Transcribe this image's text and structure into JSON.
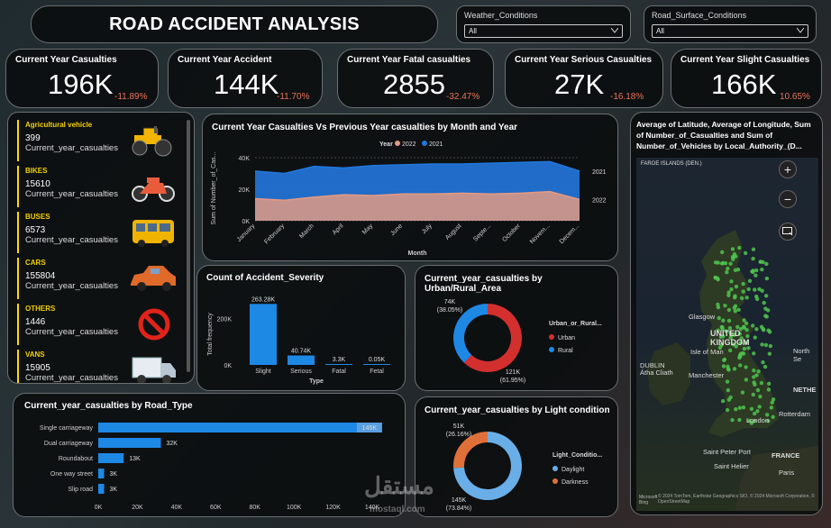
{
  "title": "ROAD ACCIDENT ANALYSIS",
  "slicers": [
    {
      "label": "Weather_Conditions",
      "value": "All"
    },
    {
      "label": "Road_Surface_Conditions",
      "value": "All"
    }
  ],
  "kpis": [
    {
      "title": "Current Year Casualties",
      "value": "196K",
      "pct": "-11.89%"
    },
    {
      "title": "Current Year Accident",
      "value": "144K",
      "pct": "-11.70%"
    },
    {
      "title": "Current Year Fatal casualties",
      "value": "2855",
      "pct": "-32.47%"
    },
    {
      "title": "Current Year Serious Casualties",
      "value": "27K",
      "pct": "-16.18%"
    },
    {
      "title": "Current Year Slight Casualties",
      "value": "166K",
      "pct": "10.65%"
    }
  ],
  "vehicles": [
    {
      "name": "Agricultural vehicle",
      "value": "399",
      "label": "Current_year_casualties",
      "icon": "tractor-icon"
    },
    {
      "name": "BIKES",
      "value": "15610",
      "label": "Current_year_casualties",
      "icon": "motorbike-icon"
    },
    {
      "name": "BUSES",
      "value": "6573",
      "label": "Current_year_casualties",
      "icon": "bus-icon"
    },
    {
      "name": "CARS",
      "value": "155804",
      "label": "Current_year_casualties",
      "icon": "car-icon"
    },
    {
      "name": "OTHERS",
      "value": "1446",
      "label": "Current_year_casualties",
      "icon": "no-entry-icon"
    },
    {
      "name": "VANS",
      "value": "15905",
      "label": "Current_year_casualties",
      "icon": "van-icon"
    }
  ],
  "chart_data": [
    {
      "type": "area",
      "title": "Current Year Casualties Vs Previous Year casualties by Month and Year",
      "xlabel": "Month",
      "ylabel": "Sum of Number_of_Cas...",
      "legend_title": "Year",
      "legend_position": "top",
      "ylim": [
        0,
        40000
      ],
      "yticks": [
        "0K",
        "20K",
        "40K"
      ],
      "categories": [
        "January",
        "February",
        "March",
        "April",
        "May",
        "June",
        "July",
        "August",
        "Septe...",
        "October",
        "Novem...",
        "Decem..."
      ],
      "series": [
        {
          "name": "2022",
          "color": "#e39a84",
          "values": [
            14000,
            13000,
            15000,
            16500,
            16000,
            17000,
            17000,
            17500,
            17000,
            17500,
            18500,
            13500
          ]
        },
        {
          "name": "2021",
          "color": "#2277dd",
          "values": [
            31500,
            30000,
            34500,
            33500,
            35000,
            35500,
            36000,
            36000,
            36500,
            37000,
            37500,
            31500
          ]
        }
      ],
      "end_labels": [
        "2021",
        "2022"
      ]
    },
    {
      "type": "bar",
      "title": "Count of Accident_Severity",
      "xlabel": "Type",
      "ylabel": "Total frequency",
      "ylim": [
        0,
        280000
      ],
      "yticks": [
        "0K",
        "200K"
      ],
      "categories": [
        "Slight",
        "Serious",
        "Fatal",
        "Fetal"
      ],
      "values": [
        263280,
        40740,
        3300,
        50
      ],
      "data_labels": [
        "263.28K",
        "40.74K",
        "3.3K",
        "0.05K"
      ],
      "color": "#1e88e5"
    },
    {
      "type": "pie",
      "title": "Current_year_casualties by Urban/Rural_Area",
      "legend_title": "Urban_or_Rural...",
      "legend_position": "right",
      "slices": [
        {
          "name": "Urban",
          "value": 121000,
          "label": "121K",
          "pct": "(61.95%)",
          "color": "#d32f2f"
        },
        {
          "name": "Rural",
          "value": 74000,
          "label": "74K",
          "pct": "(38.05%)",
          "color": "#1e88e5"
        }
      ]
    },
    {
      "type": "bar",
      "orientation": "horizontal",
      "title": "Current_year_casualties by Road_Type",
      "xlim": [
        0,
        140000
      ],
      "xticks": [
        "0K",
        "20K",
        "40K",
        "60K",
        "80K",
        "100K",
        "120K",
        "140K"
      ],
      "categories": [
        "Single carriageway",
        "Dual carriageway",
        "Roundabout",
        "One way street",
        "Slip road"
      ],
      "values": [
        145000,
        32000,
        13000,
        3000,
        3000
      ],
      "data_labels": [
        "145K",
        "32K",
        "13K",
        "3K",
        "3K"
      ],
      "color": "#1e88e5"
    },
    {
      "type": "pie",
      "title": "Current_year_casualties by Light condition",
      "legend_title": "Light_Conditio...",
      "legend_position": "right",
      "slices": [
        {
          "name": "Daylight",
          "value": 145000,
          "label": "145K",
          "pct": "(73.84%)",
          "color": "#6aaee8"
        },
        {
          "name": "Darkness",
          "value": 51000,
          "label": "51K",
          "pct": "(26.16%)",
          "color": "#e0703a"
        }
      ]
    }
  ],
  "map": {
    "title": "Average of Latitude, Average of Longitude, Sum of Number_of_Casualties and Sum of Number_of_Vehicles by Local_Authority_(D...",
    "labels": {
      "faroe": "FAROE ISLANDS (DEN.)",
      "glasgow": "Glasgow",
      "uk": "UNITED KINGDOM",
      "isle": "Isle of Man",
      "dublin": "DUBLIN",
      "ath": "Átha Cliath",
      "manchester": "Manchester",
      "north": "North Se",
      "neth": "NETHE",
      "rotterdam": "Rotterdam",
      "london": "London",
      "saint_peter": "Saint Peter Port",
      "saint_helier": "Saint Helier",
      "paris": "Paris",
      "france": "FRANCE",
      "credits": "© 2024 TomTom, Earthstar Geographics SIO, © 2024 Microsoft Corporation, © OpenStreetMap",
      "ms": "Microsoft Bing"
    }
  },
  "watermark": "مستقل",
  "watermark_sub": "mostaql.com"
}
